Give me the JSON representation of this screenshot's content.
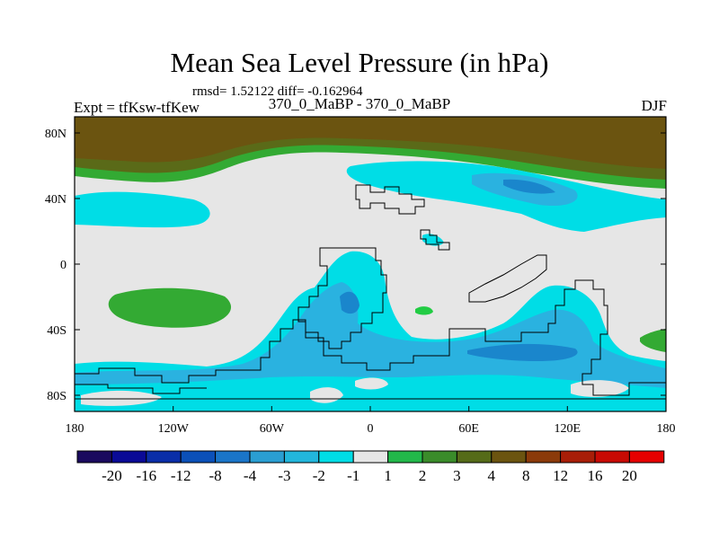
{
  "figure": {
    "title": "Mean Sea Level Pressure (in hPa)",
    "stats": "rmsd= 1.52122 diff= -0.162964",
    "experiment": "Expt = tfKsw-tfKew",
    "period": "370_0_MaBP - 370_0_MaBP",
    "season": "DJF"
  },
  "axes": {
    "x_ticks": [
      "180",
      "120W",
      "60W",
      "0",
      "60E",
      "120E",
      "180"
    ],
    "y_ticks": [
      "80N",
      "40N",
      "0",
      "40S",
      "80S"
    ]
  },
  "colorbar": {
    "labels": [
      "-20",
      "-16",
      "-12",
      "-8",
      "-4",
      "-3",
      "-2",
      "-1",
      "1",
      "2",
      "3",
      "4",
      "8",
      "12",
      "16",
      "20"
    ],
    "colors": [
      "#1a0a5e",
      "#0a0a96",
      "#0a2ea8",
      "#0b50b8",
      "#1a75c8",
      "#2a9ed2",
      "#22b6dc",
      "#00dde6",
      "#e6e6e6",
      "#22b84a",
      "#3a8c2a",
      "#556b18",
      "#6b5410",
      "#8b3a0a",
      "#a81e08",
      "#c80a04",
      "#e60000"
    ]
  },
  "map_colors": {
    "neutral": "#e6e6e6",
    "light_blue": "#00dde6",
    "mid_blue": "#2ab2e0",
    "dark_blue": "#1a86cc",
    "green": "#33aa33",
    "bright_green": "#22cc44",
    "olive": "#5a6a18",
    "brown": "#6b5410",
    "coast": "#000000"
  }
}
